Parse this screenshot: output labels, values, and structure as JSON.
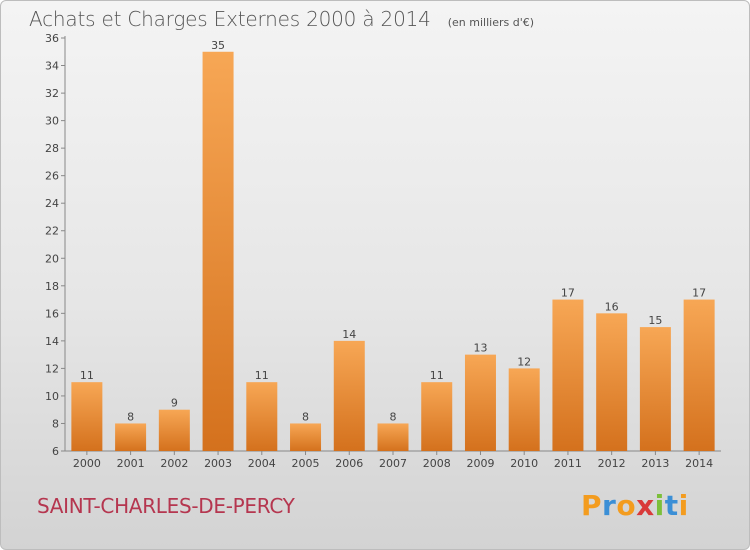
{
  "header": {
    "title": "Achats et Charges Externes 2000 à 2014",
    "unit": "(en milliers d'€)"
  },
  "commune": "SAINT-CHARLES-DE-PERCY",
  "logo": {
    "text": "Proxiti",
    "letters": [
      {
        "ch": "P",
        "color": "#f39c1f"
      },
      {
        "ch": "r",
        "color": "#3b8fd6"
      },
      {
        "ch": "o",
        "color": "#f39c1f"
      },
      {
        "ch": "x",
        "color": "#d93a3a"
      },
      {
        "ch": "i",
        "color": "#7cbf3a"
      },
      {
        "ch": "t",
        "color": "#3b8fd6"
      },
      {
        "ch": "i",
        "color": "#f39c1f"
      }
    ]
  },
  "colors": {
    "bar_light": "#f7a755",
    "bar_dark": "#d4711d",
    "commune": "#b5364f"
  },
  "chart_data": {
    "type": "bar",
    "title": "Achats et Charges Externes 2000 à 2014",
    "subtitle": "(en milliers d'€)",
    "categories": [
      "2000",
      "2001",
      "2002",
      "2003",
      "2004",
      "2005",
      "2006",
      "2007",
      "2008",
      "2009",
      "2010",
      "2011",
      "2012",
      "2013",
      "2014"
    ],
    "values": [
      11,
      8,
      9,
      35,
      11,
      8,
      14,
      8,
      11,
      13,
      12,
      17,
      16,
      15,
      17
    ],
    "ylim": [
      6,
      36
    ],
    "yticks": [
      6,
      8,
      10,
      12,
      14,
      16,
      18,
      20,
      22,
      24,
      26,
      28,
      30,
      32,
      34,
      36
    ],
    "grid": false,
    "xlabel": "",
    "ylabel": ""
  }
}
